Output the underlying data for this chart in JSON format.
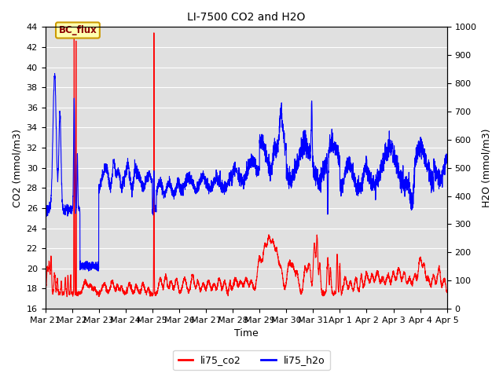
{
  "title": "LI-7500 CO2 and H2O",
  "xlabel": "Time",
  "ylabel_left": "CO2 (mmol/m3)",
  "ylabel_right": "H2O (mmol/m3)",
  "ylim_left": [
    16,
    44
  ],
  "ylim_right": [
    0,
    1000
  ],
  "yticks_left": [
    16,
    18,
    20,
    22,
    24,
    26,
    28,
    30,
    32,
    34,
    36,
    38,
    40,
    42,
    44
  ],
  "yticks_right": [
    0,
    100,
    200,
    300,
    400,
    500,
    600,
    700,
    800,
    900,
    1000
  ],
  "xtick_labels": [
    "Mar 21",
    "Mar 22",
    "Mar 23",
    "Mar 24",
    "Mar 25",
    "Mar 26",
    "Mar 27",
    "Mar 28",
    "Mar 29",
    "Mar 30",
    "Mar 31",
    "Apr 1",
    "Apr 2",
    "Apr 3",
    "Apr 4",
    "Apr 5"
  ],
  "legend_labels": [
    "li75_co2",
    "li75_h2o"
  ],
  "co2_color": "red",
  "h2o_color": "blue",
  "bg_color": "#e0e0e0",
  "annotation_text": "BC_flux",
  "grid_color": "white",
  "line_width": 0.8,
  "title_fontsize": 10
}
